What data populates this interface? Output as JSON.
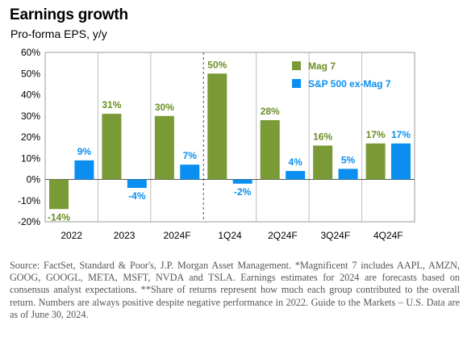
{
  "title": "Earnings growth",
  "subtitle": "Pro-forma EPS, y/y",
  "source": "Source: FactSet, Standard & Poor's, J.P. Morgan Asset Management. *Magnificent 7 includes AAPL, AMZN, GOOG, GOOGL, META, MSFT, NVDA and TSLA. Earnings estimates for 2024 are forecasts based on consensus analyst expectations. **Share of returns represent how much each group contributed to the overall return. Numbers are always positive despite negative performance in 2022. Guide to the Markets – U.S. Data are as of June 30, 2024.",
  "chart_data": {
    "type": "bar",
    "title": "Earnings growth",
    "subtitle": "Pro-forma EPS, y/y",
    "categories": [
      "2022",
      "2023",
      "2024F",
      "1Q24",
      "2Q24F",
      "3Q24F",
      "4Q24F"
    ],
    "series": [
      {
        "name": "Mag 7",
        "color": "#7A9A36",
        "values": [
          -14,
          31,
          30,
          50,
          28,
          16,
          17
        ],
        "labels": [
          "-14%",
          "31%",
          "30%",
          "50%",
          "28%",
          "16%",
          "17%"
        ]
      },
      {
        "name": "S&P 500 ex-Mag 7",
        "color": "#0A8FF0",
        "values": [
          9,
          -4,
          7,
          -2,
          4,
          5,
          17
        ],
        "labels": [
          "9%",
          "-4%",
          "7%",
          "-2%",
          "4%",
          "5%",
          "17%"
        ]
      }
    ],
    "ylim": [
      -20,
      60
    ],
    "yticks": [
      -20,
      -10,
      0,
      10,
      20,
      30,
      40,
      50,
      60
    ],
    "ytick_labels": [
      "-20%",
      "-10%",
      "0%",
      "10%",
      "20%",
      "30%",
      "40%",
      "50%",
      "60%"
    ],
    "grid": "vertical separators between categories",
    "divider": "dashed line between 2024F and 1Q24",
    "legend_position": "top-right",
    "label_colors": {
      "Mag 7": "#6B8E23",
      "S&P 500 ex-Mag 7": "#0A8FF0"
    }
  }
}
